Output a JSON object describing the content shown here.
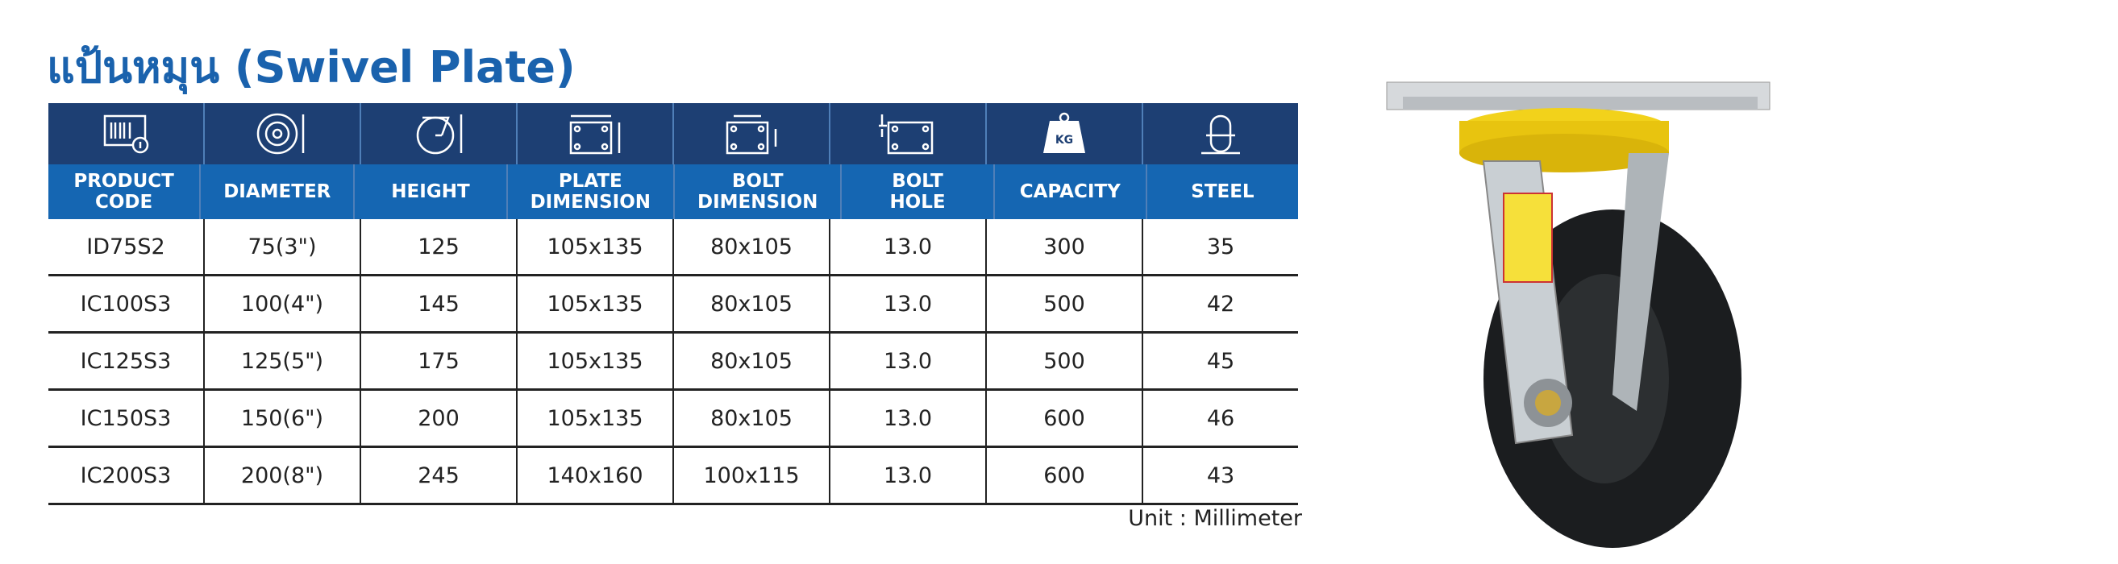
{
  "title": "แป้นหมุน (Swivel Plate)",
  "table": {
    "headers": [
      "PRODUCT CODE",
      "DIAMETER",
      "HEIGHT",
      "PLATE DIMENSION",
      "BOLT DIMENSION",
      "BOLT HOLE",
      "CAPACITY",
      "STEEL"
    ],
    "rows": [
      [
        "ID75S2",
        "75(3\")",
        "125",
        "105x135",
        "80x105",
        "13.0",
        "300",
        "35"
      ],
      [
        "IC100S3",
        "100(4\")",
        "145",
        "105x135",
        "80x105",
        "13.0",
        "500",
        "42"
      ],
      [
        "IC125S3",
        "125(5\")",
        "175",
        "105x135",
        "80x105",
        "13.0",
        "500",
        "45"
      ],
      [
        "IC150S3",
        "150(6\")",
        "200",
        "105x135",
        "80x105",
        "13.0",
        "600",
        "46"
      ],
      [
        "IC200S3",
        "200(8\")",
        "245",
        "140x160",
        "100x115",
        "13.0",
        "600",
        "43"
      ]
    ]
  },
  "unit": "Unit : Millimeter",
  "icon_text": "KG"
}
